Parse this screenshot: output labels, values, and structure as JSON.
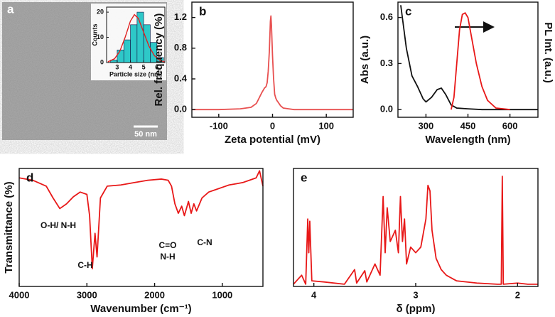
{
  "chart_data": [
    {
      "type": "histogram",
      "panel": "a",
      "scale_bar": "50 nm",
      "xlabel": "Particle size (nm)",
      "ylabel": "Counts",
      "bins": [
        2.5,
        3,
        3.5,
        4,
        4.5,
        5,
        5.5,
        6,
        6.5
      ],
      "counts": [
        1,
        5,
        9,
        15,
        20,
        15,
        8,
        2
      ],
      "color": "#2ec8c8",
      "fit": {
        "color": "#e02020",
        "x": [
          2.3,
          2.8,
          3.2,
          3.6,
          4.0,
          4.3,
          4.6,
          5.0,
          5.4,
          5.8,
          6.2,
          6.6
        ],
        "values": [
          0.3,
          1.5,
          4.5,
          10,
          16.5,
          19,
          17.5,
          12,
          6.5,
          2.8,
          0.9,
          0.2
        ]
      },
      "xlim": [
        2.2,
        6.6
      ],
      "xticks": [
        3,
        4,
        5,
        6
      ],
      "ylim": [
        0,
        22
      ],
      "yticks": [
        0,
        10,
        20
      ]
    },
    {
      "type": "line",
      "panel": "b",
      "xlabel": "Zeta potential (mV)",
      "ylabel": "Rel. frequency (%)",
      "series": [
        {
          "color": "#e85050",
          "x": [
            -150,
            -100,
            -60,
            -40,
            -30,
            -25,
            -20,
            -15,
            -12,
            -10,
            -8,
            -6,
            -5,
            -4,
            -3,
            -2,
            0,
            2,
            4,
            6,
            8,
            10,
            15,
            20,
            30,
            40,
            60,
            100,
            150
          ],
          "values": [
            0,
            0,
            0.01,
            0.03,
            0.08,
            0.15,
            0.22,
            0.28,
            0.3,
            0.35,
            0.5,
            0.75,
            0.95,
            1.15,
            1.22,
            1.1,
            0.7,
            0.4,
            0.2,
            0.15,
            0.12,
            0.1,
            0.05,
            0.02,
            0.01,
            0,
            0,
            0,
            0
          ]
        }
      ],
      "xlim": [
        -150,
        150
      ],
      "xticks": [
        -100,
        0,
        100
      ],
      "ylim": [
        -0.1,
        1.4
      ],
      "yticks": [
        {
          "value": 0,
          "label": "0.0"
        },
        {
          "value": 0.4,
          "label": "0.4"
        },
        {
          "value": 0.8,
          "label": "0.8"
        },
        {
          "value": 1.2,
          "label": "1.2"
        }
      ]
    },
    {
      "type": "line",
      "panel": "c",
      "xlabel": "Wavelength (nm)",
      "ylabel": "Abs (a.u.)",
      "y2label": "PL Int. (a.u.)",
      "series": [
        {
          "color": "#111111",
          "x": [
            210,
            230,
            250,
            270,
            290,
            300,
            320,
            340,
            355,
            370,
            390,
            410,
            450,
            500,
            600,
            700
          ],
          "values": [
            0.68,
            0.4,
            0.22,
            0.15,
            0.07,
            0.05,
            0.08,
            0.13,
            0.14,
            0.1,
            0.03,
            0.01,
            0.005,
            0,
            0,
            0
          ]
        },
        {
          "color": "#e81818",
          "axis": "y2",
          "x": [
            390,
            400,
            410,
            420,
            430,
            440,
            450,
            460,
            480,
            500,
            520,
            550,
            600
          ],
          "values": [
            0,
            0.08,
            0.3,
            0.52,
            0.62,
            0.63,
            0.6,
            0.5,
            0.3,
            0.15,
            0.06,
            0.01,
            0
          ]
        }
      ],
      "xlim": [
        200,
        700
      ],
      "xticks": [
        300,
        450,
        600
      ],
      "ylim": [
        -0.05,
        0.7
      ],
      "y2lim": [
        -0.05,
        0.7
      ],
      "yticks": [
        {
          "value": 0,
          "label": "0.0"
        },
        0.3,
        0.6
      ]
    },
    {
      "type": "line",
      "panel": "d",
      "xlabel": "Wavenumber (cm⁻¹)",
      "ylabel": "Transmittance (%)",
      "annotations": [
        "O-H/ N-H",
        "C-H",
        "C=O",
        "N-H",
        "C-N"
      ],
      "series": [
        {
          "color": "#e81818",
          "x": [
            4000,
            3800,
            3600,
            3500,
            3400,
            3300,
            3200,
            3100,
            3000,
            2960,
            2920,
            2880,
            2850,
            2800,
            2700,
            2500,
            2300,
            2100,
            1900,
            1800,
            1750,
            1700,
            1650,
            1600,
            1560,
            1500,
            1460,
            1420,
            1380,
            1300,
            1200,
            1100,
            1000,
            900,
            800,
            700,
            600,
            500,
            450,
            400
          ],
          "values": [
            0.92,
            0.9,
            0.85,
            0.75,
            0.66,
            0.7,
            0.76,
            0.8,
            0.78,
            0.6,
            0.15,
            0.45,
            0.25,
            0.75,
            0.85,
            0.86,
            0.88,
            0.9,
            0.91,
            0.9,
            0.85,
            0.7,
            0.62,
            0.68,
            0.6,
            0.72,
            0.62,
            0.7,
            0.64,
            0.75,
            0.8,
            0.82,
            0.84,
            0.86,
            0.87,
            0.88,
            0.9,
            0.92,
            0.98,
            0.85
          ]
        }
      ],
      "xlim": [
        4000,
        400
      ],
      "xticks": [
        4000,
        3000,
        2000,
        1000
      ],
      "ylim": [
        0,
        1
      ]
    },
    {
      "type": "line",
      "panel": "e",
      "xlabel": "δ (ppm)",
      "series": [
        {
          "color": "#e81818",
          "x": [
            4.2,
            4.12,
            4.08,
            4.06,
            4.05,
            4.04,
            4.02,
            3.9,
            3.7,
            3.6,
            3.58,
            3.5,
            3.48,
            3.4,
            3.35,
            3.32,
            3.3,
            3.28,
            3.25,
            3.2,
            3.17,
            3.15,
            3.13,
            3.11,
            3.09,
            3.05,
            3.0,
            2.95,
            2.9,
            2.88,
            2.86,
            2.84,
            2.8,
            2.75,
            2.7,
            2.6,
            2.4,
            2.2,
            2.16,
            2.15,
            2.14,
            2.0,
            1.9,
            1.8
          ],
          "values": [
            0.02,
            0.1,
            0.02,
            0.6,
            0.3,
            0.58,
            0.05,
            0.04,
            0.02,
            0.15,
            0.03,
            0.14,
            0.04,
            0.2,
            0.1,
            0.8,
            0.3,
            0.7,
            0.4,
            0.5,
            0.3,
            0.8,
            0.4,
            0.6,
            0.2,
            0.35,
            0.3,
            0.35,
            0.6,
            0.9,
            0.85,
            0.5,
            0.25,
            0.15,
            0.1,
            0.05,
            0.03,
            0.02,
            0.02,
            0.98,
            0.02,
            0.03,
            0.02,
            0.02
          ]
        }
      ],
      "xlim": [
        4.2,
        1.8
      ],
      "xticks": [
        4,
        3,
        2
      ],
      "ylim": [
        0,
        1.05
      ]
    }
  ]
}
